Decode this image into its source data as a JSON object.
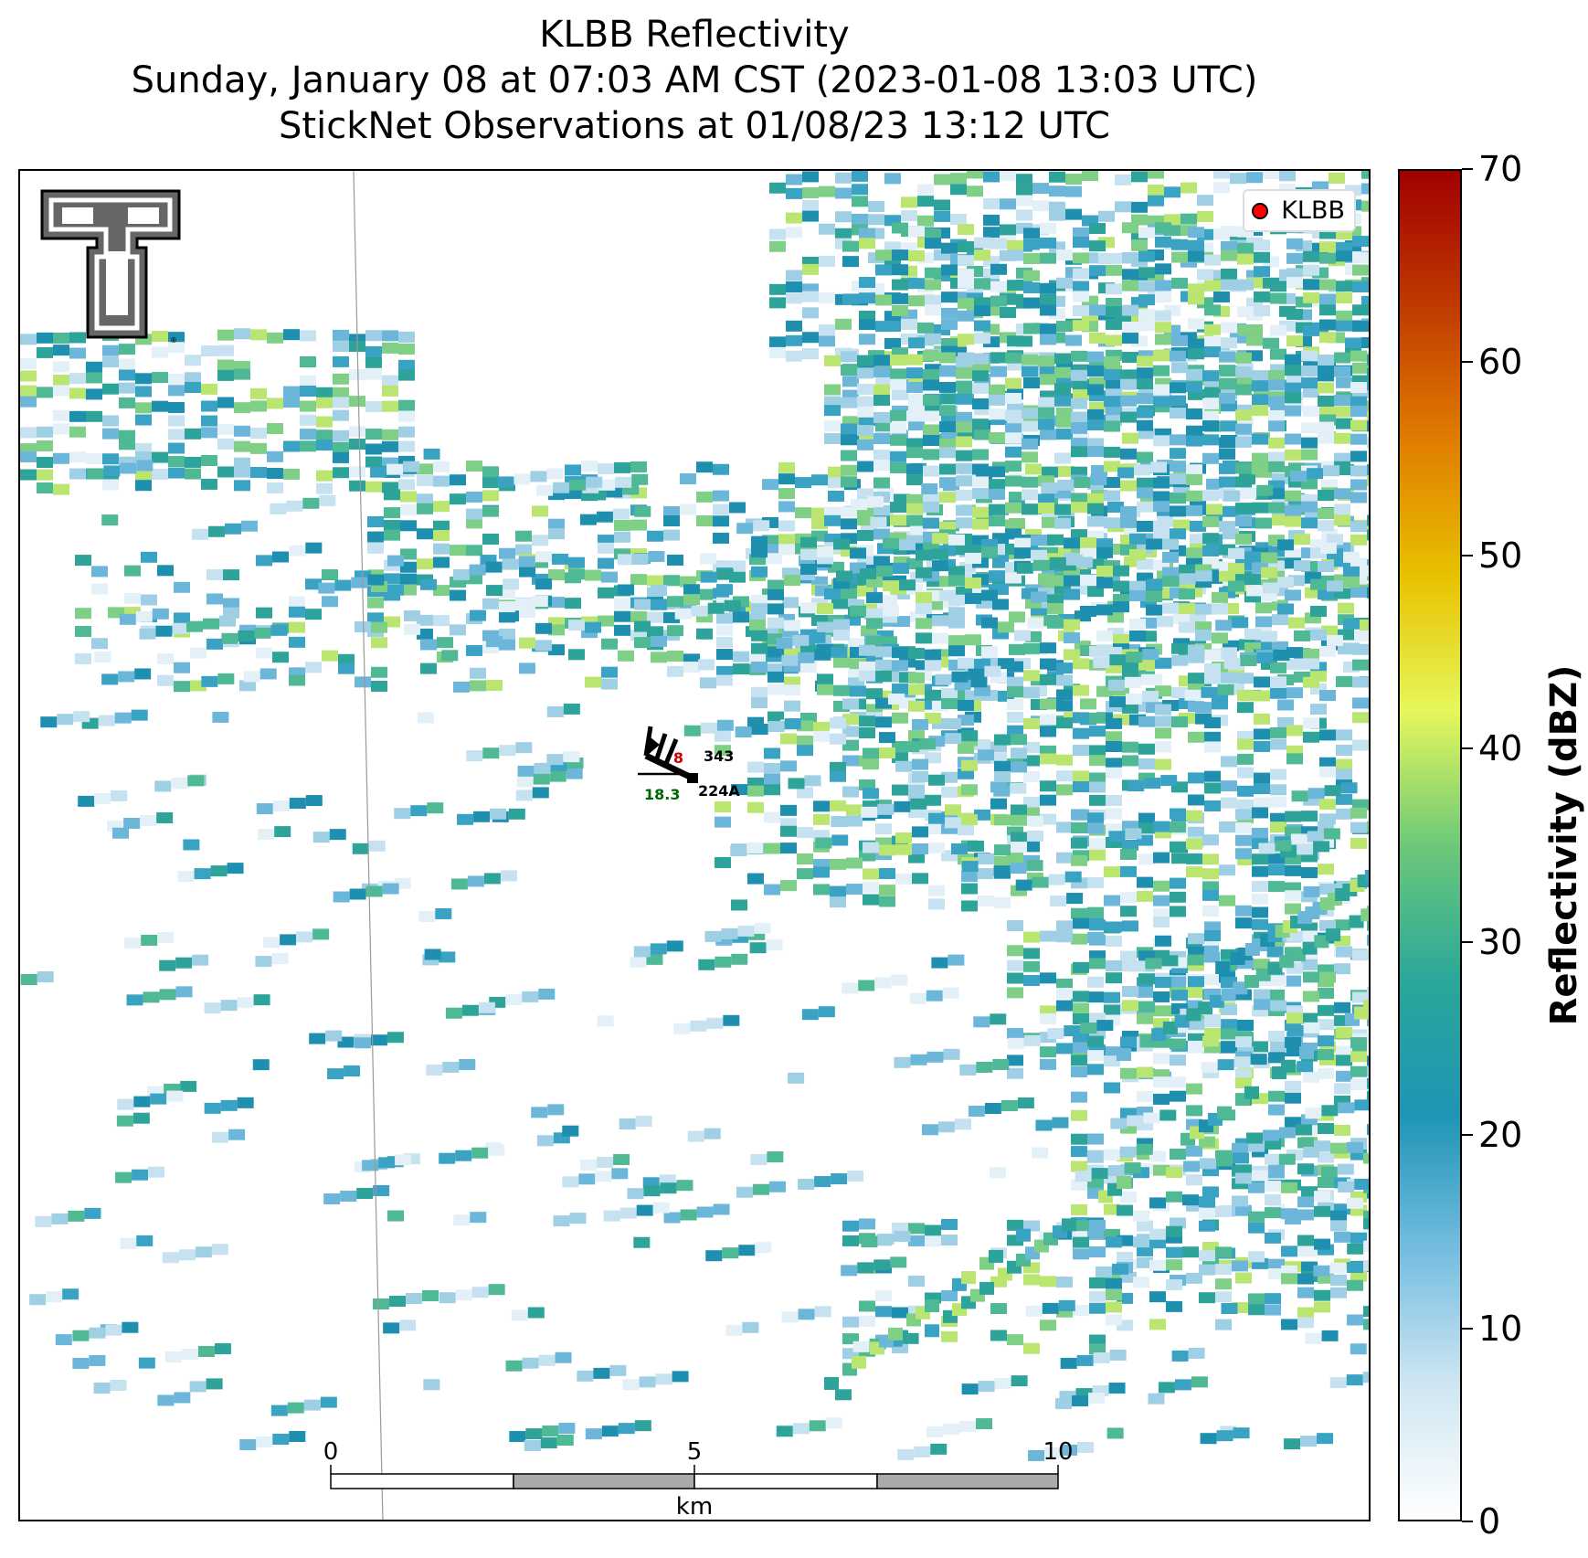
{
  "title": {
    "line1": "KLBB Reflectivity",
    "line2": "Sunday, January 08 at 07:03 AM CST (2023-01-08 13:03 UTC)",
    "line3": "StickNet Observations at 01/08/23 13:12 UTC"
  },
  "legend": {
    "label": "KLBB",
    "marker_color": "#ff0000"
  },
  "colorbar": {
    "label": "Reflectivity (dBZ)",
    "ticks": [
      "0",
      "10",
      "20",
      "30",
      "40",
      "50",
      "60",
      "70"
    ],
    "range": [
      0,
      70
    ],
    "colors": [
      "#ffffff",
      "#cfe6f2",
      "#74bde0",
      "#1f95b5",
      "#2aa79a",
      "#6dc978",
      "#e6f75b",
      "#e8c100",
      "#e07d00",
      "#c03a00",
      "#a00000"
    ]
  },
  "station": {
    "id": "224A",
    "temperature": "8",
    "pressure": "343",
    "dewpoint": "18.3",
    "temperature_color": "#cc0000",
    "dewpoint_color": "#006400"
  },
  "scalebar": {
    "ticks": [
      "0",
      "5",
      "10"
    ],
    "unit": "km"
  },
  "logo": {
    "name": "texas-tech-double-t-logo"
  }
}
